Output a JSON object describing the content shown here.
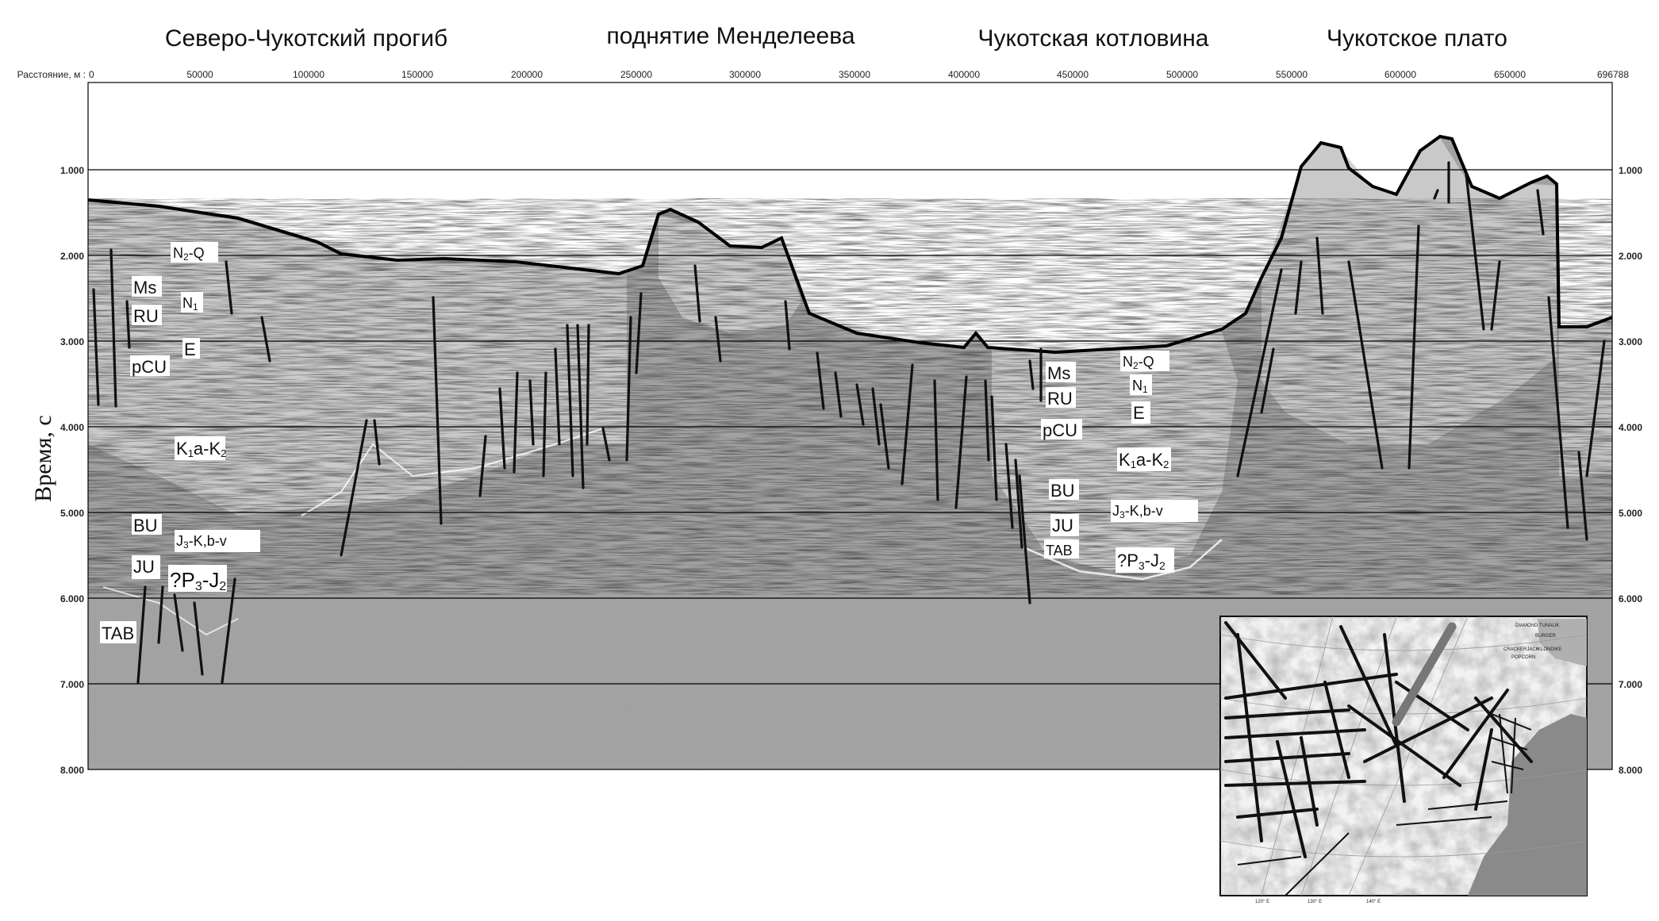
{
  "regions": [
    "Северо-Чукотский прогиб",
    "поднятие Менделеева",
    "Чукотская котловина",
    "Чукотское плато"
  ],
  "x_axis": {
    "label": "Расстояние, м :",
    "ticks": [
      "0",
      "50000",
      "100000",
      "150000",
      "200000",
      "250000",
      "300000",
      "350000",
      "400000",
      "450000",
      "500000",
      "550000",
      "600000",
      "650000",
      "696788"
    ]
  },
  "y_axis": {
    "label": "Время, с",
    "ticks": [
      "1.000",
      "2.000",
      "3.000",
      "4.000",
      "5.000",
      "6.000",
      "7.000",
      "8.000"
    ]
  },
  "units_left": {
    "n2q": {
      "main": "N",
      "sub": "2",
      "tail": "-Q"
    },
    "ms": "Ms",
    "n1": {
      "main": "N",
      "sub": "1"
    },
    "ru": "RU",
    "e": "E",
    "pcu": "pCU",
    "k1k2": {
      "main": "K",
      "sub1": "1",
      "mid": "a-K",
      "sub2": "2"
    },
    "bu": "BU",
    "j3k": {
      "main": "J",
      "sub": "3",
      "tail": "-K,b-v"
    },
    "ju": "JU",
    "p3j2": {
      "pre": "?P",
      "sub1": "3",
      "mid": "-J",
      "sub2": "2"
    },
    "tab": "TAB"
  },
  "units_right": {
    "n2q": {
      "main": "N",
      "sub": "2",
      "tail": "-Q"
    },
    "ms": "Ms",
    "n1": {
      "main": "N",
      "sub": "1"
    },
    "ru": "RU",
    "e": "E",
    "pcu": "pCU",
    "k1k2": {
      "main": "K",
      "sub1": "1",
      "mid": "a-K",
      "sub2": "2"
    },
    "bu": "BU",
    "j3k": {
      "main": "J",
      "sub": "3",
      "tail": "-K,b-v"
    },
    "ju": "JU",
    "tab": "TAB",
    "p3j2": {
      "pre": "?P",
      "sub1": "3",
      "mid": "-J",
      "sub2": "2"
    }
  },
  "inset_map": {
    "labels": [
      "DIAMOND",
      "TUNALIK",
      "BURGER",
      "CRACKERJACK",
      "KLONDIKE",
      "POPCORN"
    ],
    "lon_labels": [
      "120° E",
      "130° E",
      "140° E"
    ]
  },
  "colors": {
    "background": "#ffffff",
    "seismic": "#9a9a9a",
    "grid_line": "#000000",
    "fault_line": "#111111"
  }
}
